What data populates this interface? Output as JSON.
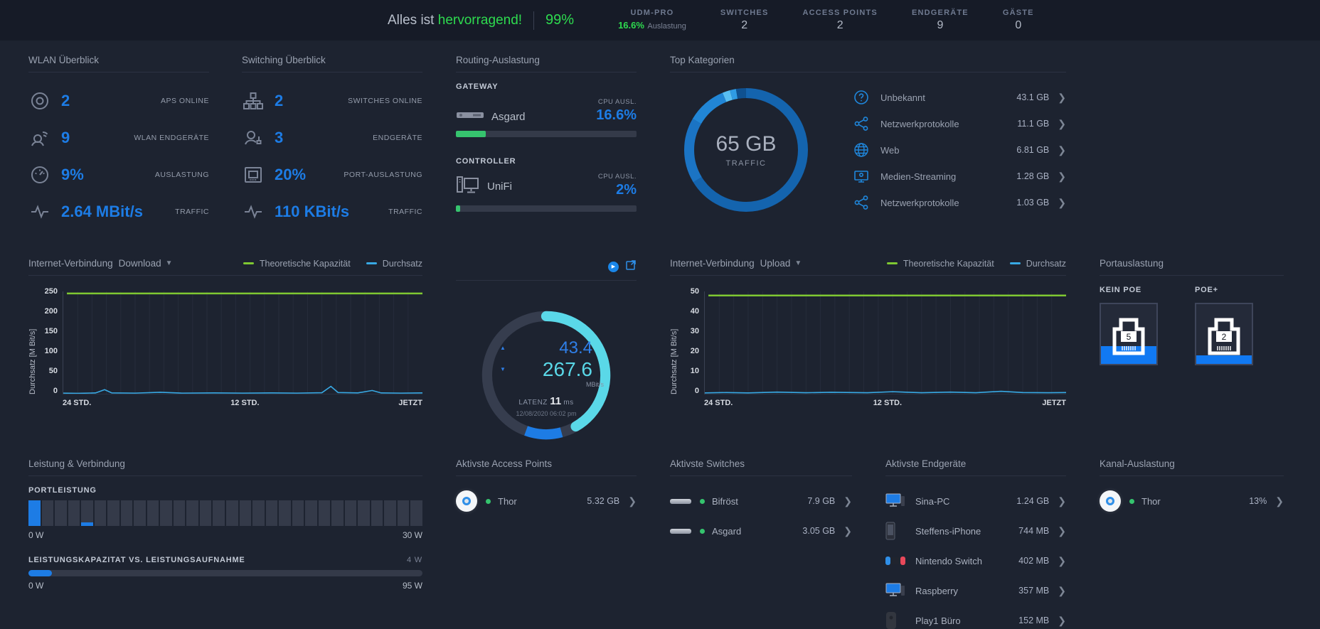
{
  "header": {
    "status_prefix": "Alles ist",
    "status_highlight": "hervorragend!",
    "health_percent": "99%",
    "stats": [
      {
        "label": "UDM-PRO",
        "value": "16.6%",
        "suffix": "Auslastung"
      },
      {
        "label": "SWITCHES",
        "value": "2"
      },
      {
        "label": "ACCESS POINTS",
        "value": "2"
      },
      {
        "label": "ENDGERÄTE",
        "value": "9"
      },
      {
        "label": "GÄSTE",
        "value": "0"
      }
    ]
  },
  "wlan": {
    "title": "WLAN Überblick",
    "rows": [
      {
        "icon": "access-point-icon",
        "value": "2",
        "label": "APS ONLINE"
      },
      {
        "icon": "wireless-client-icon",
        "value": "9",
        "label": "WLAN ENDGERÄTE"
      },
      {
        "icon": "utilization-gauge-icon",
        "value": "9%",
        "label": "AUSLASTUNG"
      },
      {
        "icon": "traffic-activity-icon",
        "value": "2.64 MBit/s",
        "label": "TRAFFIC"
      }
    ]
  },
  "switching": {
    "title": "Switching Überblick",
    "rows": [
      {
        "icon": "switch-topology-icon",
        "value": "2",
        "label": "SWITCHES ONLINE"
      },
      {
        "icon": "wired-client-icon",
        "value": "3",
        "label": "ENDGERÄTE"
      },
      {
        "icon": "port-icon",
        "value": "20%",
        "label": "PORT-AUSLASTUNG"
      },
      {
        "icon": "traffic-activity-icon",
        "value": "110 KBit/s",
        "label": "TRAFFIC"
      }
    ]
  },
  "routing": {
    "title": "Routing-Auslastung",
    "gateway": {
      "section": "GATEWAY",
      "name": "Asgard",
      "cpu_label": "CPU AUSL.",
      "cpu_value": "16.6%",
      "bar_percent": 16.6
    },
    "controller": {
      "section": "CONTROLLER",
      "name": "UniFi",
      "cpu_label": "CPU AUSL.",
      "cpu_value": "2%",
      "bar_percent": 2.5
    }
  },
  "categories": {
    "title": "Top Kategorien",
    "donut": {
      "center_value": "65 GB",
      "center_label": "TRAFFIC",
      "segments": [
        {
          "pct": 66.3,
          "color": "#1464ae"
        },
        {
          "pct": 17.1,
          "color": "#1b74c4"
        },
        {
          "pct": 10.4,
          "color": "#2186d6"
        },
        {
          "pct": 2.0,
          "color": "#59bff2"
        },
        {
          "pct": 1.6,
          "color": "#2f9ce4"
        },
        {
          "pct": 2.6,
          "color": "#0f5190"
        }
      ]
    },
    "items": [
      {
        "icon": "question-circle-icon",
        "label": "Unbekannt",
        "value": "43.1 GB"
      },
      {
        "icon": "share-nodes-icon",
        "label": "Netzwerkprotokolle",
        "value": "11.1 GB"
      },
      {
        "icon": "globe-icon",
        "label": "Web",
        "value": "6.81 GB"
      },
      {
        "icon": "media-streaming-icon",
        "label": "Medien-Streaming",
        "value": "1.28 GB"
      },
      {
        "icon": "share-nodes-icon",
        "label": "Netzwerkprotokolle",
        "value": "1.03 GB"
      }
    ]
  },
  "download_chart": {
    "type": "line",
    "title": "Internet-Verbindung",
    "range_selector": "Download",
    "legend": [
      {
        "label": "Theoretische Kapazität",
        "color": "#7fc832"
      },
      {
        "label": "Durchsatz",
        "color": "#38a9e4"
      }
    ],
    "ylabel": "Durchsatz [M Bit/s]",
    "yticks": [
      "250",
      "200",
      "150",
      "100",
      "50",
      "0"
    ],
    "xticks": [
      "24 STD.",
      "12 STD.",
      "JETZT"
    ],
    "ymax": 250,
    "capacity_value": 245,
    "throughput_points": [
      [
        0,
        1.5
      ],
      [
        0.04,
        1
      ],
      [
        0.09,
        2
      ],
      [
        0.115,
        10
      ],
      [
        0.135,
        2
      ],
      [
        0.2,
        1.5
      ],
      [
        0.27,
        3.5
      ],
      [
        0.33,
        1.5
      ],
      [
        0.42,
        2
      ],
      [
        0.5,
        1.5
      ],
      [
        0.58,
        2
      ],
      [
        0.65,
        1.5
      ],
      [
        0.72,
        2.5
      ],
      [
        0.745,
        18
      ],
      [
        0.765,
        3
      ],
      [
        0.82,
        2
      ],
      [
        0.86,
        8
      ],
      [
        0.885,
        2
      ],
      [
        0.94,
        1.5
      ],
      [
        1,
        2
      ]
    ]
  },
  "speedtest": {
    "upload_value": "43.4",
    "download_value": "267.6",
    "unit": "MBit/s",
    "latency_label": "LATENZ",
    "latency_value": "11",
    "latency_unit": "ms",
    "timestamp": "12/08/2020 06:02 pm"
  },
  "upload_chart": {
    "type": "line",
    "title": "Internet-Verbindung",
    "range_selector": "Upload",
    "legend": [
      {
        "label": "Theoretische Kapazität",
        "color": "#7fc832"
      },
      {
        "label": "Durchsatz",
        "color": "#38a9e4"
      }
    ],
    "ylabel": "Durchsatz [M Bit/s]",
    "yticks": [
      "50",
      "40",
      "30",
      "20",
      "10",
      "0"
    ],
    "xticks": [
      "24 STD.",
      "12 STD.",
      "JETZT"
    ],
    "ymax": 50,
    "capacity_value": 48,
    "throughput_points": [
      [
        0,
        0.4
      ],
      [
        0.06,
        0.6
      ],
      [
        0.12,
        0.4
      ],
      [
        0.2,
        0.8
      ],
      [
        0.28,
        0.5
      ],
      [
        0.35,
        0.7
      ],
      [
        0.45,
        0.5
      ],
      [
        0.52,
        1.0
      ],
      [
        0.6,
        0.5
      ],
      [
        0.68,
        0.8
      ],
      [
        0.75,
        0.5
      ],
      [
        0.82,
        1.2
      ],
      [
        0.88,
        0.6
      ],
      [
        0.95,
        0.5
      ],
      [
        1,
        0.6
      ]
    ]
  },
  "ports_panel": {
    "title": "Portauslastung",
    "groups": [
      {
        "label": "KEIN POE",
        "count": "5",
        "fill_percent": 30
      },
      {
        "label": "POE+",
        "count": "2",
        "fill_percent": 14
      }
    ]
  },
  "power_panel": {
    "title": "Leistung & Verbindung",
    "port_power": {
      "label": "PORTLEISTUNG",
      "segment_count": 30,
      "full_segments": [
        0
      ],
      "partial_segments": [
        4
      ],
      "min_label": "0 W",
      "max_label": "30 W"
    },
    "capacity": {
      "label": "LEISTUNGSKAPAZITAT VS. LEISTUNGSAUFNAHME",
      "current_label": "4 W",
      "fill_percent": 6,
      "min_label": "0 W",
      "max_label": "95 W"
    }
  },
  "top_aps": {
    "title": "Aktivste Access Points",
    "items": [
      {
        "name": "Thor",
        "value": "5.32 GB"
      }
    ]
  },
  "top_switches": {
    "title": "Aktivste Switches",
    "items": [
      {
        "name": "Bifröst",
        "value": "7.9 GB"
      },
      {
        "name": "Asgard",
        "value": "3.05 GB"
      }
    ]
  },
  "top_clients": {
    "title": "Aktivste Endgeräte",
    "items": [
      {
        "name": "Sina-PC",
        "value": "1.24 GB",
        "icon": "desktop-icon"
      },
      {
        "name": "Steffens-iPhone",
        "value": "744 MB",
        "icon": "phone-icon"
      },
      {
        "name": "Nintendo Switch",
        "value": "402 MB",
        "icon": "game-console-icon"
      },
      {
        "name": "Raspberry",
        "value": "357 MB",
        "icon": "desktop-icon"
      },
      {
        "name": "Play1 Büro",
        "value": "152 MB",
        "icon": "speaker-icon"
      }
    ]
  },
  "channel_panel": {
    "title": "Kanal-Auslastung",
    "items": [
      {
        "name": "Thor",
        "value": "13%"
      }
    ]
  },
  "colors": {
    "accent_blue": "#1d7ce5",
    "status_green": "#2edb4f",
    "bar_green": "#36c46e",
    "cyan": "#5ad8e8",
    "capacity_lime": "#7fc832",
    "throughput_blue": "#38a9e4"
  }
}
